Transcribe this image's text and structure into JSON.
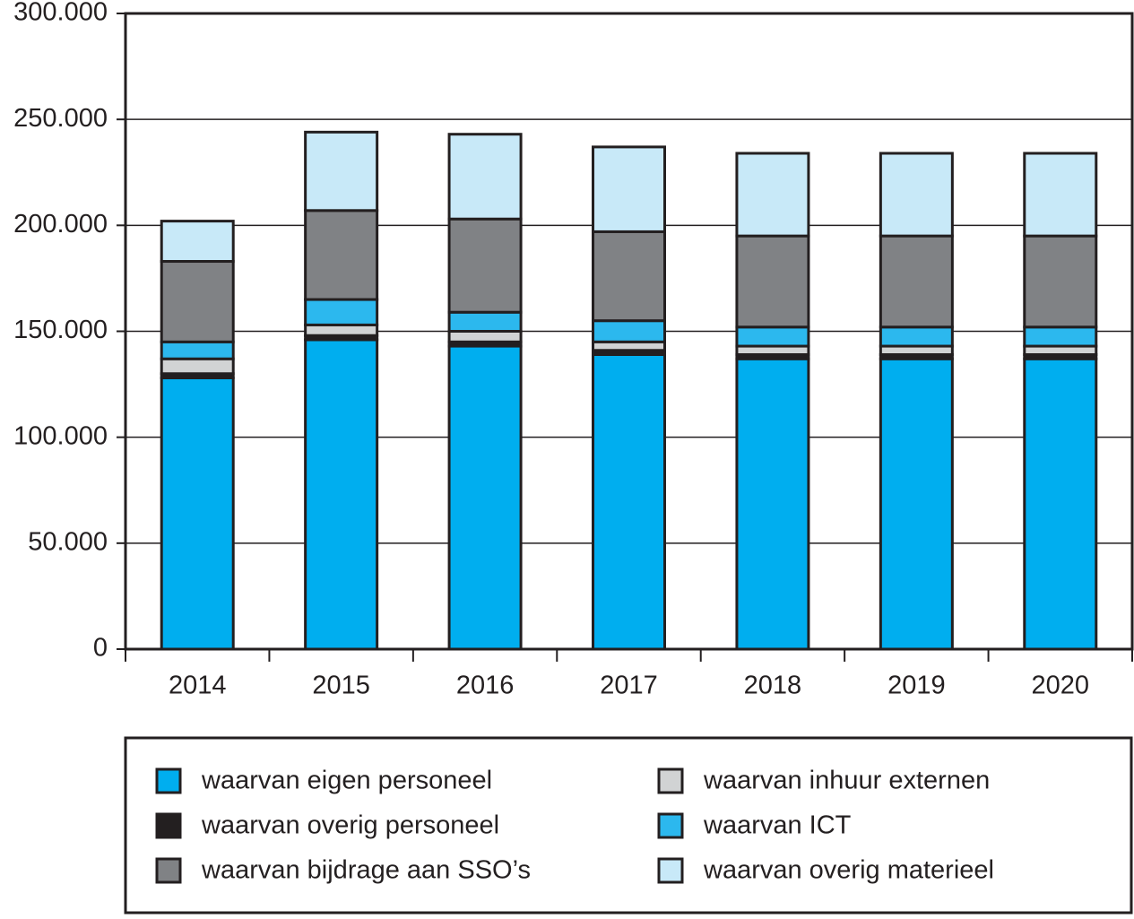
{
  "chart_data": {
    "type": "stacked-bar",
    "categories": [
      "2014",
      "2015",
      "2016",
      "2017",
      "2018",
      "2019",
      "2020"
    ],
    "series": [
      {
        "name": "waarvan eigen personeel",
        "color": "#00aeef",
        "values": [
          128000,
          146000,
          143000,
          139000,
          137000,
          137000,
          137000
        ]
      },
      {
        "name": "waarvan overig personeel",
        "color": "#231f20",
        "values": [
          2000,
          2000,
          2000,
          2000,
          2000,
          2000,
          2000
        ]
      },
      {
        "name": "waarvan inhuur externen",
        "color": "#d1d3d4",
        "values": [
          7000,
          5000,
          5000,
          4000,
          4000,
          4000,
          4000
        ]
      },
      {
        "name": "waarvan ICT",
        "color": "#2cb8ee",
        "values": [
          8000,
          12000,
          9000,
          10000,
          9000,
          9000,
          9000
        ]
      },
      {
        "name": "waarvan bijdrage aan SSO’s",
        "color": "#808285",
        "values": [
          38000,
          42000,
          44000,
          42000,
          43000,
          43000,
          43000
        ]
      },
      {
        "name": "waarvan overig materieel",
        "color": "#c8e9f8",
        "values": [
          19000,
          37000,
          40000,
          40000,
          39000,
          39000,
          39000
        ]
      }
    ],
    "ylim": [
      0,
      300000
    ],
    "yticks": [
      0,
      {
        "value": 50000,
        "label": "50.000"
      },
      {
        "value": 100000,
        "label": "100.000"
      },
      {
        "value": 150000,
        "label": "150.000"
      },
      {
        "value": 200000,
        "label": "200.000"
      },
      {
        "value": 250000,
        "label": "250.000"
      },
      {
        "value": 300000,
        "label": "300.000"
      }
    ],
    "grid": true
  }
}
